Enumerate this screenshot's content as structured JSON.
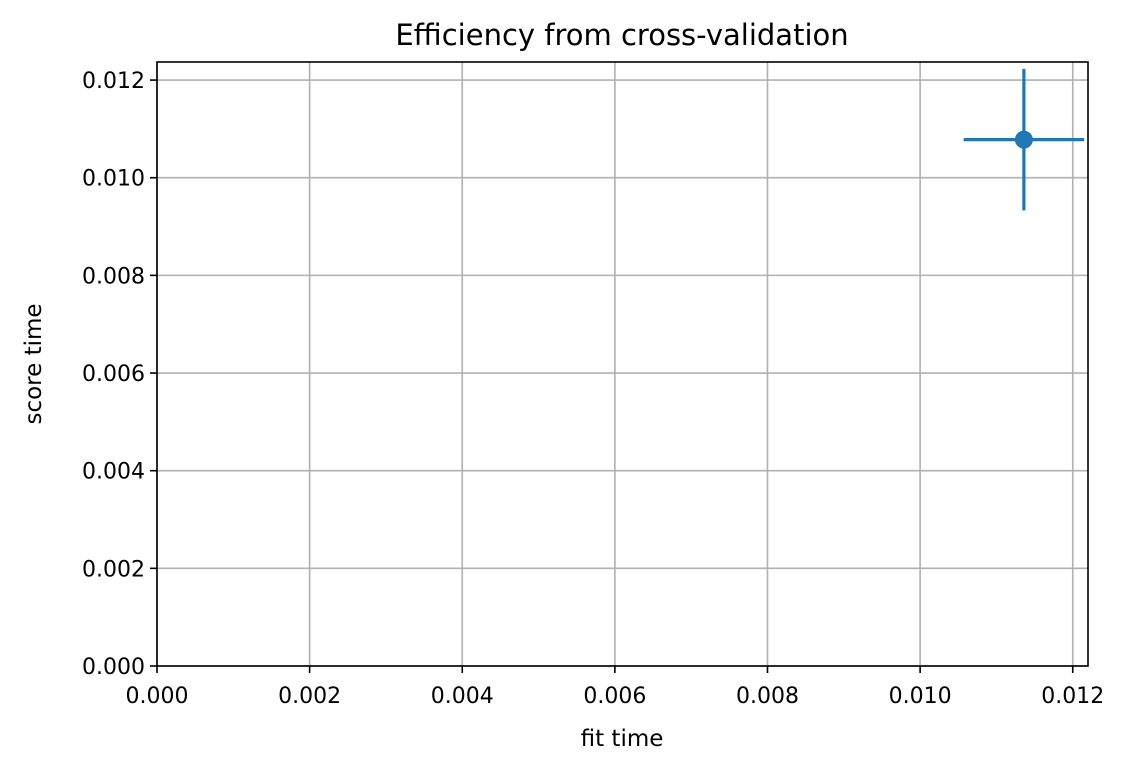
{
  "chart_data": {
    "type": "scatter",
    "title": "Efficiency from cross-validation",
    "xlabel": "fit time",
    "ylabel": "score time",
    "xlim": [
      0,
      0.0122
    ],
    "ylim": [
      0,
      0.01237
    ],
    "xticks": [
      "0.000",
      "0.002",
      "0.004",
      "0.006",
      "0.008",
      "0.010",
      "0.012"
    ],
    "yticks": [
      "0.000",
      "0.002",
      "0.004",
      "0.006",
      "0.008",
      "0.010",
      "0.012"
    ],
    "grid": true,
    "legend": "none",
    "points": [
      {
        "x": 0.01136,
        "y": 0.01078,
        "xerr": 0.00079,
        "yerr": 0.00145
      }
    ],
    "color": "#1f77b4"
  }
}
